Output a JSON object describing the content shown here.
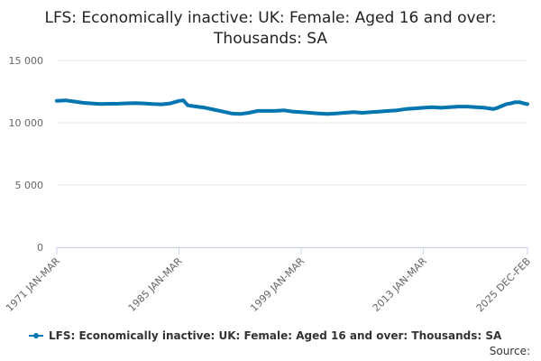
{
  "colors": {
    "series": "#0075b0",
    "grid": "#e6e6e6",
    "axis": "#ccd6eb"
  },
  "chart_data": {
    "type": "line",
    "title_lines": [
      "LFS: Economically inactive: UK: Female: Aged 16 and over:",
      "Thousands: SA"
    ],
    "ylim": [
      0,
      15000
    ],
    "yticks": [
      {
        "value": 0,
        "label": "0"
      },
      {
        "value": 5000,
        "label": "5 000"
      },
      {
        "value": 10000,
        "label": "10 000"
      },
      {
        "value": 15000,
        "label": "15 000"
      }
    ],
    "xlim": [
      "1971-02",
      "2025-01"
    ],
    "xticks": [
      {
        "date": "1971-02",
        "label": "1971 JAN-MAR"
      },
      {
        "date": "1985-02",
        "label": "1985 JAN-MAR"
      },
      {
        "date": "1999-02",
        "label": "1999 JAN-MAR"
      },
      {
        "date": "2013-02",
        "label": "2013 JAN-MAR"
      },
      {
        "date": "2025-01",
        "label": "2025 DEC-FEB"
      }
    ],
    "grid": true,
    "legend_position": "bottom",
    "series": [
      {
        "name": "LFS: Economically inactive: UK: Female: Aged 16 and over: Thousands: SA",
        "points": [
          [
            "1971-02",
            11750
          ],
          [
            "1972-02",
            11800
          ],
          [
            "1973-02",
            11700
          ],
          [
            "1974-02",
            11600
          ],
          [
            "1975-02",
            11550
          ],
          [
            "1976-02",
            11500
          ],
          [
            "1977-02",
            11520
          ],
          [
            "1978-02",
            11530
          ],
          [
            "1979-02",
            11560
          ],
          [
            "1980-02",
            11570
          ],
          [
            "1981-02",
            11550
          ],
          [
            "1982-02",
            11500
          ],
          [
            "1983-02",
            11480
          ],
          [
            "1984-02",
            11550
          ],
          [
            "1985-02",
            11750
          ],
          [
            "1985-08",
            11800
          ],
          [
            "1986-02",
            11400
          ],
          [
            "1987-02",
            11300
          ],
          [
            "1988-02",
            11200
          ],
          [
            "1989-02",
            11050
          ],
          [
            "1990-02",
            10900
          ],
          [
            "1991-02",
            10750
          ],
          [
            "1992-02",
            10700
          ],
          [
            "1993-02",
            10800
          ],
          [
            "1994-02",
            10950
          ],
          [
            "1995-02",
            10950
          ],
          [
            "1996-02",
            10950
          ],
          [
            "1997-02",
            11000
          ],
          [
            "1998-02",
            10900
          ],
          [
            "1999-02",
            10850
          ],
          [
            "2000-02",
            10800
          ],
          [
            "2001-02",
            10750
          ],
          [
            "2002-02",
            10700
          ],
          [
            "2003-02",
            10750
          ],
          [
            "2004-02",
            10800
          ],
          [
            "2005-02",
            10850
          ],
          [
            "2006-02",
            10800
          ],
          [
            "2007-02",
            10850
          ],
          [
            "2008-02",
            10900
          ],
          [
            "2009-02",
            10950
          ],
          [
            "2010-02",
            11000
          ],
          [
            "2011-02",
            11100
          ],
          [
            "2012-02",
            11150
          ],
          [
            "2013-02",
            11200
          ],
          [
            "2014-02",
            11250
          ],
          [
            "2015-02",
            11200
          ],
          [
            "2016-02",
            11250
          ],
          [
            "2017-02",
            11300
          ],
          [
            "2018-02",
            11300
          ],
          [
            "2019-02",
            11250
          ],
          [
            "2020-02",
            11200
          ],
          [
            "2020-08",
            11150
          ],
          [
            "2021-02",
            11100
          ],
          [
            "2021-08",
            11200
          ],
          [
            "2022-02",
            11350
          ],
          [
            "2022-08",
            11500
          ],
          [
            "2023-02",
            11550
          ],
          [
            "2023-08",
            11650
          ],
          [
            "2024-02",
            11650
          ],
          [
            "2024-08",
            11550
          ],
          [
            "2025-01",
            11500
          ]
        ]
      }
    ]
  },
  "legend_label": "LFS: Economically inactive: UK: Female: Aged 16 and over: Thousands: SA",
  "source_label": "Source:"
}
